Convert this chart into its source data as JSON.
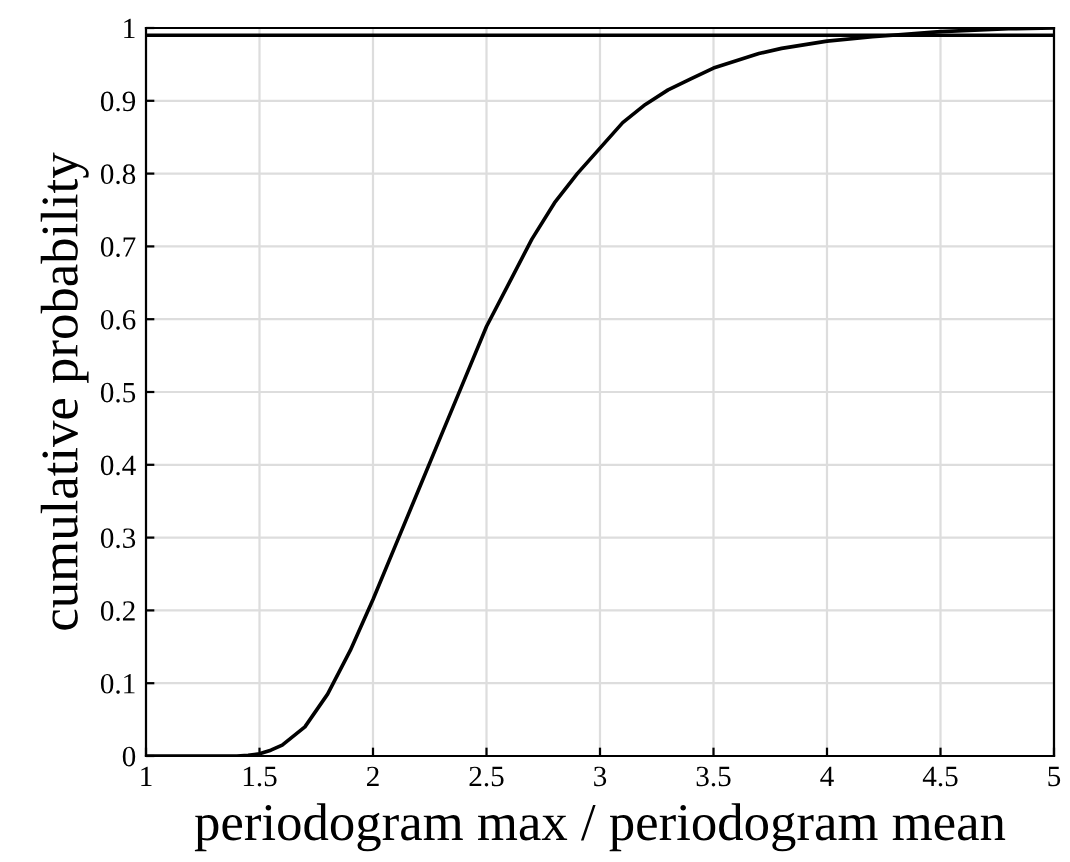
{
  "chart_data": {
    "type": "line",
    "xlabel": "periodogram max / periodogram mean",
    "ylabel": "cumulative probability",
    "x": [
      1,
      1.2,
      1.4,
      1.45,
      1.5,
      1.55,
      1.6,
      1.7,
      1.8,
      1.9,
      2.0,
      2.1,
      2.2,
      2.3,
      2.4,
      2.5,
      2.6,
      2.7,
      2.8,
      2.9,
      3.0,
      3.1,
      3.2,
      3.3,
      3.4,
      3.5,
      3.6,
      3.7,
      3.8,
      4.0,
      4.2,
      4.5,
      4.8,
      5.0
    ],
    "series": [
      {
        "color": "#000000",
        "values": [
          0,
          0,
          0,
          0.001,
          0.003,
          0.008,
          0.015,
          0.04,
          0.085,
          0.145,
          0.215,
          0.29,
          0.365,
          0.44,
          0.515,
          0.59,
          0.65,
          0.71,
          0.76,
          0.8,
          0.835,
          0.87,
          0.895,
          0.915,
          0.93,
          0.945,
          0.955,
          0.965,
          0.972,
          0.982,
          0.988,
          0.995,
          0.999,
          1.0
        ]
      }
    ],
    "ref_lines": [
      {
        "axis": "y",
        "value": 0.99,
        "label": null,
        "color": "#000000"
      }
    ],
    "xlim": [
      1,
      5
    ],
    "ylim": [
      0,
      1
    ],
    "xticks": [
      1,
      1.5,
      2,
      2.5,
      3,
      3.5,
      4,
      4.5,
      5
    ],
    "yticks": [
      0,
      0.1,
      0.2,
      0.3,
      0.4,
      0.5,
      0.6,
      0.7,
      0.8,
      0.9,
      1
    ],
    "grid": true,
    "marker": "none",
    "line_style": "solid"
  }
}
